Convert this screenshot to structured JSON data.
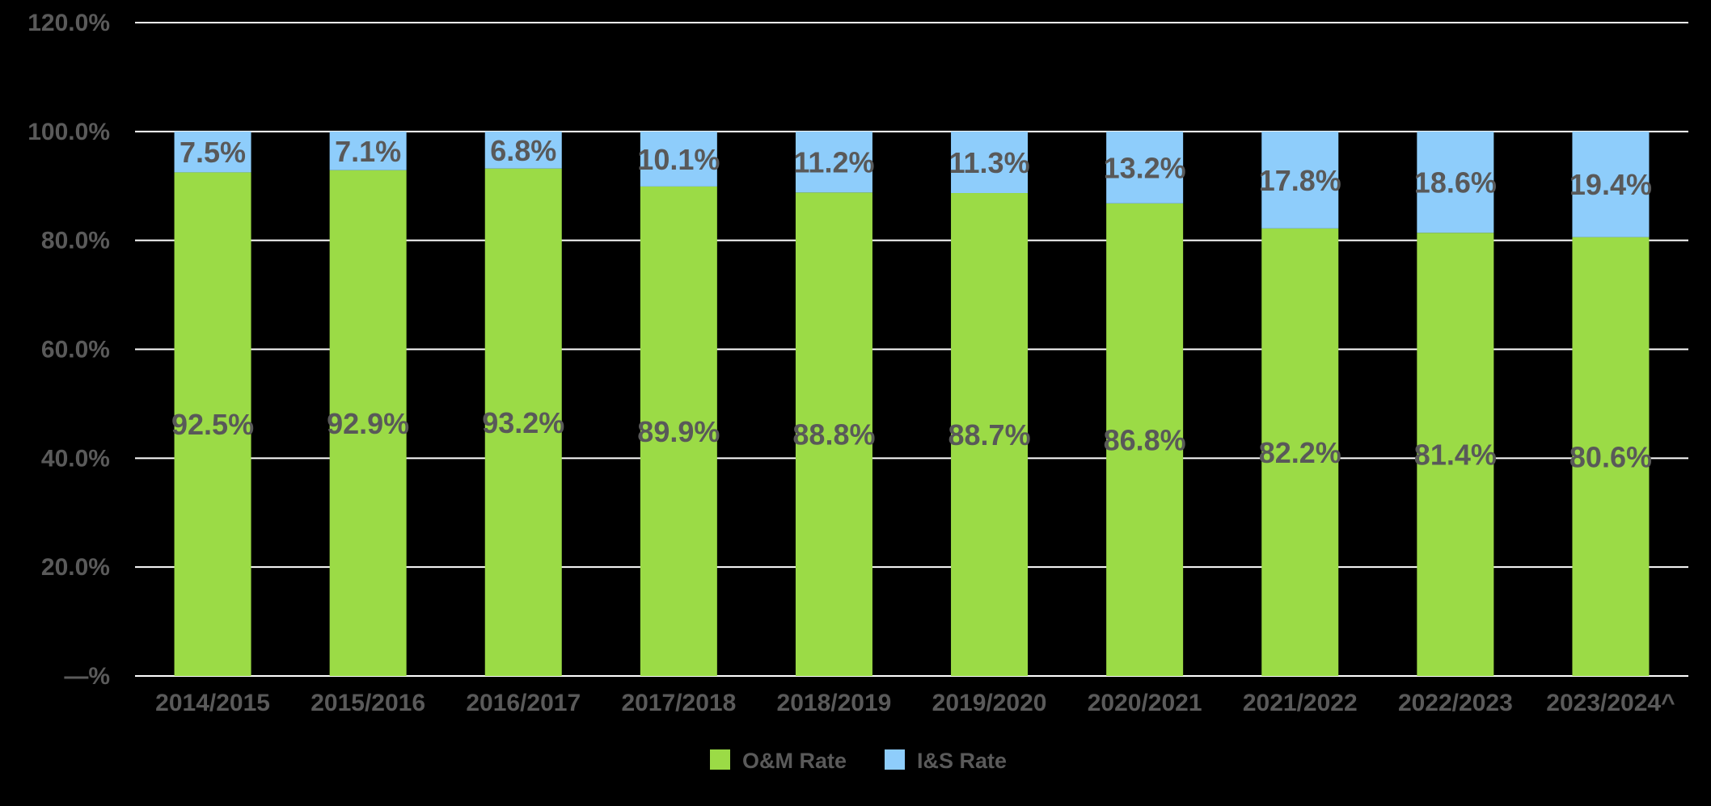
{
  "chart_data": {
    "type": "bar",
    "stacked": true,
    "categories": [
      "2014/2015",
      "2015/2016",
      "2016/2017",
      "2017/2018",
      "2018/2019",
      "2019/2020",
      "2020/2021",
      "2021/2022",
      "2022/2023",
      "2023/2024^"
    ],
    "series": [
      {
        "name": "O&M Rate",
        "color": "#9bdb46",
        "values": [
          92.5,
          92.9,
          93.2,
          89.9,
          88.8,
          88.7,
          86.8,
          82.2,
          81.4,
          80.6
        ],
        "labels": [
          "92.5%",
          "92.9%",
          "93.2%",
          "89.9%",
          "88.8%",
          "88.7%",
          "86.8%",
          "82.2%",
          "81.4%",
          "80.6%"
        ]
      },
      {
        "name": "I&S Rate",
        "color": "#8ecdfb",
        "values": [
          7.5,
          7.1,
          6.8,
          10.1,
          11.2,
          11.3,
          13.2,
          17.8,
          18.6,
          19.4
        ],
        "labels": [
          "7.5%",
          "7.1%",
          "6.8%",
          "10.1%",
          "11.2%",
          "11.3%",
          "13.2%",
          "17.8%",
          "18.6%",
          "19.4%"
        ]
      }
    ],
    "ylim": [
      0,
      120
    ],
    "yticks": [
      {
        "value": 0,
        "label": "—%"
      },
      {
        "value": 20,
        "label": "20.0%"
      },
      {
        "value": 40,
        "label": "40.0%"
      },
      {
        "value": 60,
        "label": "60.0%"
      },
      {
        "value": 80,
        "label": "80.0%"
      },
      {
        "value": 100,
        "label": "100.0%"
      },
      {
        "value": 120,
        "label": "120.0%"
      }
    ],
    "grid": true,
    "legend_position": "bottom",
    "colors": {
      "background": "#000000",
      "gridline": "#ffffff",
      "text": "#5a5a5a"
    }
  }
}
